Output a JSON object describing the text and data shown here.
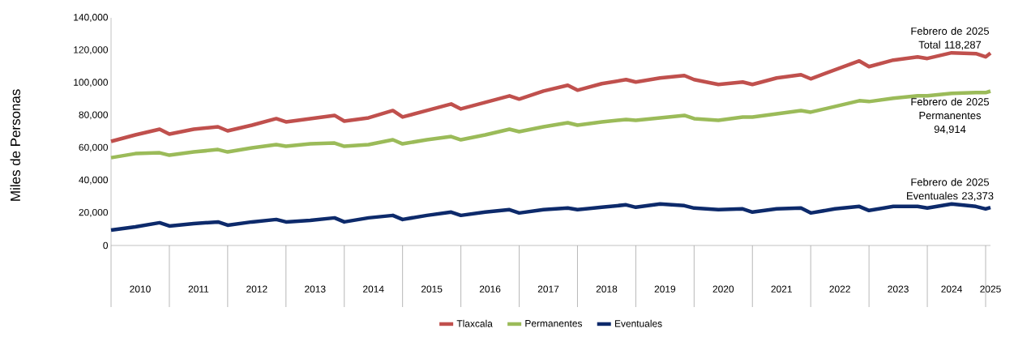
{
  "chart_data": {
    "type": "line",
    "ylabel": "Miles de Personas",
    "x": [
      "2010-01",
      "2010-06",
      "2010-11",
      "2011-01",
      "2011-06",
      "2011-11",
      "2012-01",
      "2012-06",
      "2012-11",
      "2013-01",
      "2013-06",
      "2013-11",
      "2014-01",
      "2014-06",
      "2014-11",
      "2015-01",
      "2015-06",
      "2015-11",
      "2016-01",
      "2016-06",
      "2016-11",
      "2017-01",
      "2017-06",
      "2017-11",
      "2018-01",
      "2018-06",
      "2018-11",
      "2019-01",
      "2019-06",
      "2019-11",
      "2020-01",
      "2020-06",
      "2020-11",
      "2021-01",
      "2021-06",
      "2021-11",
      "2022-01",
      "2022-06",
      "2022-11",
      "2023-01",
      "2023-06",
      "2023-11",
      "2024-01",
      "2024-06",
      "2024-11",
      "2025-01",
      "2025-02"
    ],
    "series": [
      {
        "name": "Tlaxcala",
        "color": "#c0504d",
        "values": [
          64000,
          68000,
          71500,
          68500,
          71500,
          73000,
          70500,
          74000,
          78000,
          76000,
          78000,
          80000,
          76500,
          78500,
          83000,
          79000,
          83000,
          87000,
          84000,
          88000,
          92000,
          90000,
          95000,
          98500,
          95500,
          99500,
          102000,
          100500,
          103000,
          104500,
          102000,
          99000,
          100500,
          99000,
          103000,
          105000,
          102500,
          108000,
          113500,
          110000,
          114000,
          116000,
          115000,
          118500,
          118000,
          116000,
          118287
        ]
      },
      {
        "name": "Permanentes",
        "color": "#9bbb59",
        "values": [
          54000,
          56500,
          57000,
          55500,
          57500,
          59000,
          57500,
          60000,
          62000,
          61000,
          62500,
          63000,
          61000,
          62000,
          65000,
          62500,
          65000,
          67000,
          65000,
          68000,
          71500,
          70000,
          73000,
          75500,
          74000,
          76000,
          77500,
          77000,
          78500,
          80000,
          78000,
          77000,
          79000,
          79000,
          81000,
          83000,
          82000,
          85500,
          89000,
          88500,
          90500,
          92000,
          92000,
          93500,
          94000,
          94000,
          94914
        ]
      },
      {
        "name": "Eventuales",
        "color": "#0d2a6b",
        "values": [
          9500,
          11500,
          14000,
          12000,
          13500,
          14500,
          12500,
          14500,
          16000,
          14500,
          15500,
          17000,
          14500,
          17000,
          18500,
          16000,
          18500,
          20500,
          18500,
          20500,
          22000,
          20000,
          22000,
          23000,
          22000,
          23500,
          25000,
          23500,
          25500,
          24500,
          23000,
          22000,
          22500,
          20500,
          22500,
          23000,
          20000,
          22500,
          24000,
          21500,
          24000,
          24000,
          23000,
          25500,
          24000,
          22500,
          23373
        ]
      }
    ],
    "xlim": [
      "2010-01",
      "2025-02"
    ],
    "xticks": [
      {
        "value": "2010-07",
        "label": "2010"
      },
      {
        "value": "2011-07",
        "label": "2011"
      },
      {
        "value": "2012-07",
        "label": "2012"
      },
      {
        "value": "2013-07",
        "label": "2013"
      },
      {
        "value": "2014-07",
        "label": "2014"
      },
      {
        "value": "2015-07",
        "label": "2015"
      },
      {
        "value": "2016-07",
        "label": "2016"
      },
      {
        "value": "2017-07",
        "label": "2017"
      },
      {
        "value": "2018-07",
        "label": "2018"
      },
      {
        "value": "2019-07",
        "label": "2019"
      },
      {
        "value": "2020-07",
        "label": "2020"
      },
      {
        "value": "2021-07",
        "label": "2021"
      },
      {
        "value": "2022-07",
        "label": "2022"
      },
      {
        "value": "2023-07",
        "label": "2023"
      },
      {
        "value": "2024-06",
        "label": "2024"
      },
      {
        "value": "2025-02",
        "label": "2025"
      }
    ],
    "ylim": [
      0,
      140000
    ],
    "yticks": [
      0,
      {
        "value": 20000,
        "label": "20,000"
      },
      {
        "value": 40000,
        "label": "40,000"
      },
      {
        "value": 60000,
        "label": "60,000"
      },
      {
        "value": 80000,
        "label": "80,000"
      },
      {
        "value": 100000,
        "label": "100,000"
      },
      {
        "value": 120000,
        "label": "120,000"
      },
      {
        "value": 140000,
        "label": "140,000"
      }
    ],
    "grid": false,
    "legend": "bottom",
    "marker": "none",
    "line_style": "solid",
    "annotations": [
      {
        "text": "Febrero de 2025 Total 118,287",
        "x": "2025-02",
        "y": 118287
      },
      {
        "text": "Febrero de 2025 Permanentes 94,914",
        "x": "2025-02",
        "y": 94914
      },
      {
        "text": "Febrero de 2025 Eventuales 23,373",
        "x": "2025-02",
        "y": 23373
      }
    ]
  }
}
